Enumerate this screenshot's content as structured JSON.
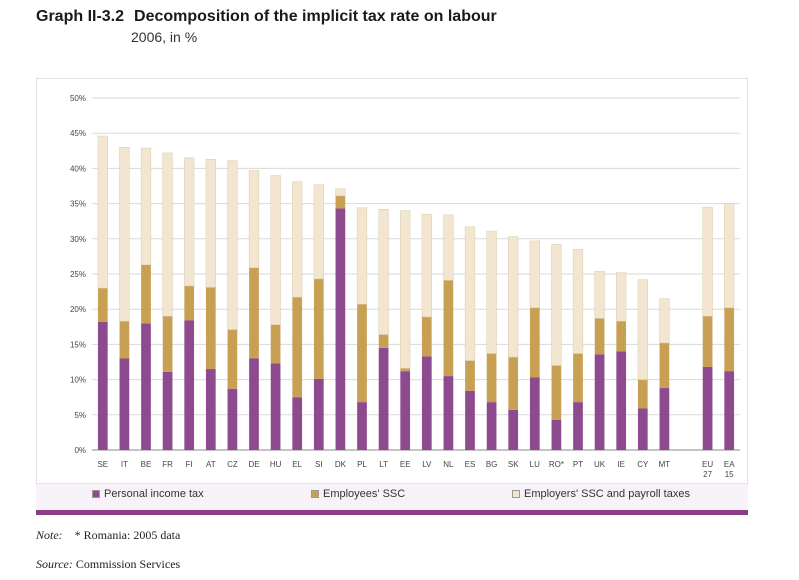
{
  "header": {
    "graph_number": "Graph II-3.2",
    "title": "Decomposition of the implicit tax rate on labour",
    "subtitle": "2006, in %"
  },
  "colors": {
    "personal_income_tax": "#8e4a8e",
    "employees_ssc": "#c8a054",
    "employers_ssc": "#f3e6d0",
    "accent_bar": "#8c3d86"
  },
  "chart_data": {
    "type": "bar",
    "stacked": true,
    "title": "Decomposition of the implicit tax rate on labour",
    "subtitle": "2006, in %",
    "xlabel": "",
    "ylabel": "",
    "ylim": [
      0,
      50
    ],
    "yticks": [
      "0%",
      "5%",
      "10%",
      "15%",
      "20%",
      "25%",
      "30%",
      "35%",
      "40%",
      "45%",
      "50%"
    ],
    "grid": true,
    "categories": [
      "SE",
      "IT",
      "BE",
      "FR",
      "FI",
      "AT",
      "CZ",
      "DE",
      "HU",
      "EL",
      "SI",
      "DK",
      "PL",
      "LT",
      "EE",
      "LV",
      "NL",
      "ES",
      "BG",
      "SK",
      "LU",
      "RO*",
      "PT",
      "UK",
      "IE",
      "CY",
      "MT",
      "",
      "EU 27",
      "EA 15"
    ],
    "series": [
      {
        "name": "Personal income tax",
        "values": [
          18.2,
          13.0,
          18.0,
          11.1,
          18.4,
          11.5,
          8.7,
          13.0,
          12.3,
          7.5,
          10.1,
          34.3,
          6.8,
          14.5,
          11.2,
          13.3,
          10.5,
          8.4,
          6.8,
          5.7,
          10.3,
          4.3,
          6.8,
          13.6,
          14.0,
          5.9,
          8.8,
          null,
          11.8,
          11.2
        ]
      },
      {
        "name": "Employees' SSC",
        "values": [
          4.8,
          5.3,
          8.3,
          7.9,
          4.9,
          11.6,
          8.4,
          12.9,
          5.5,
          14.2,
          14.2,
          1.8,
          13.9,
          1.9,
          0.4,
          5.6,
          13.6,
          4.3,
          6.9,
          7.5,
          9.9,
          7.7,
          6.9,
          5.1,
          4.3,
          4.1,
          6.4,
          null,
          7.2,
          9.0
        ]
      },
      {
        "name": "Employers' SSC and payroll taxes",
        "values": [
          21.6,
          24.7,
          16.6,
          23.2,
          18.2,
          18.2,
          24.0,
          13.8,
          21.2,
          16.4,
          13.4,
          1.0,
          13.7,
          17.8,
          22.4,
          14.6,
          9.3,
          19.0,
          17.4,
          17.1,
          9.5,
          17.2,
          14.8,
          6.7,
          6.9,
          14.2,
          6.3,
          null,
          15.5,
          14.8
        ]
      }
    ],
    "legend": [
      "Personal income tax",
      "Employees' SSC",
      "Employers' SSC and payroll taxes"
    ],
    "legend_position": "bottom"
  },
  "footer": {
    "note_label": "Note:",
    "note_text": "* Romania: 2005 data",
    "source_label": "Source:",
    "source_text": "Commission Services"
  }
}
